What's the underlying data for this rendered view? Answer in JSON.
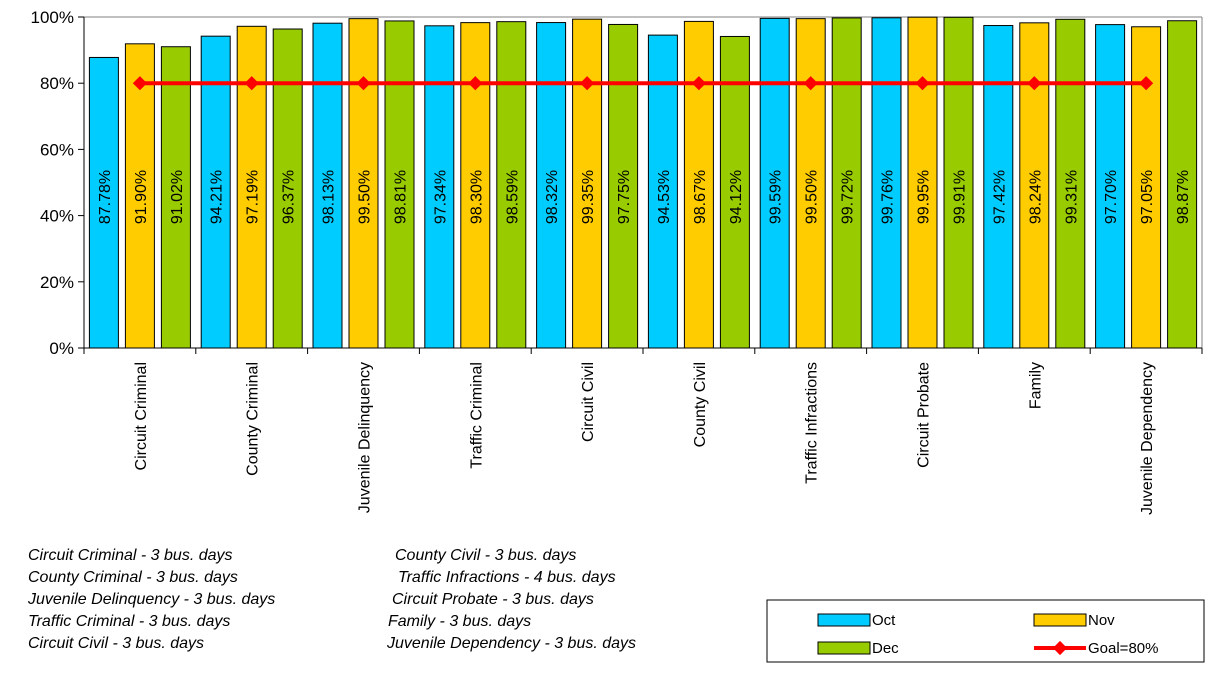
{
  "chart_data": {
    "type": "bar",
    "title": "",
    "xlabel": "",
    "ylabel": "",
    "ylim": [
      0,
      100
    ],
    "yticks": [
      0,
      20,
      40,
      60,
      80,
      100
    ],
    "ytick_labels": [
      "0%",
      "20%",
      "40%",
      "60%",
      "80%",
      "100%"
    ],
    "grid": false,
    "legend_position": "bottom-right",
    "categories": [
      "Circuit Criminal",
      "County Criminal",
      "Juvenile Delinquency",
      "Traffic Criminal",
      "Circuit Civil",
      "County Civil",
      "Traffic Infractions",
      "Circuit Probate",
      "Family",
      "Juvenile Dependency"
    ],
    "series": [
      {
        "name": "Oct",
        "color": "#00ccff",
        "values": [
          87.78,
          94.21,
          98.13,
          97.34,
          98.32,
          94.53,
          99.59,
          99.76,
          97.42,
          97.7
        ],
        "labels": [
          "87.78%",
          "94.21%",
          "98.13%",
          "97.34%",
          "98.32%",
          "94.53%",
          "99.59%",
          "99.76%",
          "97.42%",
          "97.70%"
        ]
      },
      {
        "name": "Nov",
        "color": "#ffcc00",
        "values": [
          91.9,
          97.19,
          99.5,
          98.3,
          99.35,
          98.67,
          99.5,
          99.95,
          98.24,
          97.05
        ],
        "labels": [
          "91.90%",
          "97.19%",
          "99.50%",
          "98.30%",
          "99.35%",
          "98.67%",
          "99.50%",
          "99.95%",
          "98.24%",
          "97.05%"
        ]
      },
      {
        "name": "Dec",
        "color": "#99cc00",
        "values": [
          91.02,
          96.37,
          98.81,
          98.59,
          97.75,
          94.12,
          99.72,
          99.91,
          99.31,
          98.87
        ],
        "labels": [
          "91.02%",
          "96.37%",
          "98.81%",
          "98.59%",
          "97.75%",
          "94.12%",
          "99.72%",
          "99.91%",
          "99.31%",
          "98.87%"
        ]
      }
    ],
    "goal": {
      "name": "Goal=80%",
      "value": 80,
      "color": "#ff0000"
    },
    "notes_left": [
      "Circuit Criminal - 3 bus. days",
      "County Criminal - 3 bus. days",
      "Juvenile Delinquency - 3 bus. days",
      "Traffic Criminal - 3 bus. days",
      "Circuit Civil - 3 bus. days"
    ],
    "notes_right": [
      "County Civil - 3 bus. days",
      "Traffic Infractions - 4 bus. days",
      "Circuit Probate - 3 bus. days",
      "Family - 3 bus. days",
      "Juvenile Dependency - 3 bus. days"
    ]
  }
}
